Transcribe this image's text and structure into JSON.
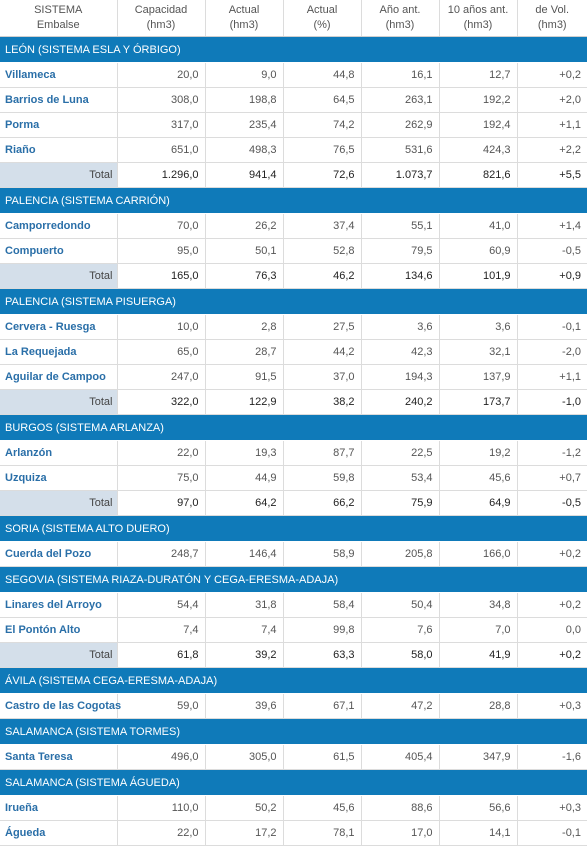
{
  "headers": [
    {
      "line1": "SISTEMA",
      "line2": "Embalse"
    },
    {
      "line1": "Capacidad",
      "line2": "(hm3)"
    },
    {
      "line1": "Actual",
      "line2": "(hm3)"
    },
    {
      "line1": "Actual",
      "line2": "(%)"
    },
    {
      "line1": "Año ant.",
      "line2": "(hm3)"
    },
    {
      "line1": "10 años ant.",
      "line2": "(hm3)"
    },
    {
      "line1": "de Vol.",
      "line2": "(hm3)"
    }
  ],
  "total_label": "Total",
  "sections": [
    {
      "title": "LEÓN (SISTEMA ESLA Y ÓRBIGO)",
      "rows": [
        {
          "name": "Villameca",
          "values": [
            "20,0",
            "9,0",
            "44,8",
            "16,1",
            "12,7",
            "+0,2"
          ]
        },
        {
          "name": "Barrios de Luna",
          "values": [
            "308,0",
            "198,8",
            "64,5",
            "263,1",
            "192,2",
            "+2,0"
          ]
        },
        {
          "name": "Porma",
          "values": [
            "317,0",
            "235,4",
            "74,2",
            "262,9",
            "192,4",
            "+1,1"
          ]
        },
        {
          "name": "Riaño",
          "values": [
            "651,0",
            "498,3",
            "76,5",
            "531,6",
            "424,3",
            "+2,2"
          ]
        }
      ],
      "total": [
        "1.296,0",
        "941,4",
        "72,6",
        "1.073,7",
        "821,6",
        "+5,5"
      ]
    },
    {
      "title": "PALENCIA (SISTEMA CARRIÓN)",
      "rows": [
        {
          "name": "Camporredondo",
          "values": [
            "70,0",
            "26,2",
            "37,4",
            "55,1",
            "41,0",
            "+1,4"
          ]
        },
        {
          "name": "Compuerto",
          "values": [
            "95,0",
            "50,1",
            "52,8",
            "79,5",
            "60,9",
            "-0,5"
          ]
        }
      ],
      "total": [
        "165,0",
        "76,3",
        "46,2",
        "134,6",
        "101,9",
        "+0,9"
      ]
    },
    {
      "title": "PALENCIA (SISTEMA PISUERGA)",
      "rows": [
        {
          "name": "Cervera - Ruesga",
          "values": [
            "10,0",
            "2,8",
            "27,5",
            "3,6",
            "3,6",
            "-0,1"
          ]
        },
        {
          "name": "La Requejada",
          "values": [
            "65,0",
            "28,7",
            "44,2",
            "42,3",
            "32,1",
            "-2,0"
          ]
        },
        {
          "name": "Aguilar de Campoo",
          "values": [
            "247,0",
            "91,5",
            "37,0",
            "194,3",
            "137,9",
            "+1,1"
          ]
        }
      ],
      "total": [
        "322,0",
        "122,9",
        "38,2",
        "240,2",
        "173,7",
        "-1,0"
      ]
    },
    {
      "title": "BURGOS (SISTEMA ARLANZA)",
      "rows": [
        {
          "name": "Arlanzón",
          "values": [
            "22,0",
            "19,3",
            "87,7",
            "22,5",
            "19,2",
            "-1,2"
          ]
        },
        {
          "name": "Uzquiza",
          "values": [
            "75,0",
            "44,9",
            "59,8",
            "53,4",
            "45,6",
            "+0,7"
          ]
        }
      ],
      "total": [
        "97,0",
        "64,2",
        "66,2",
        "75,9",
        "64,9",
        "-0,5"
      ]
    },
    {
      "title": "SORIA (SISTEMA ALTO DUERO)",
      "rows": [
        {
          "name": "Cuerda del Pozo",
          "values": [
            "248,7",
            "146,4",
            "58,9",
            "205,8",
            "166,0",
            "+0,2"
          ]
        }
      ],
      "total": null
    },
    {
      "title": "SEGOVIA (SISTEMA RIAZA-DURATÓN Y CEGA-ERESMA-ADAJA)",
      "rows": [
        {
          "name": "Linares del Arroyo",
          "values": [
            "54,4",
            "31,8",
            "58,4",
            "50,4",
            "34,8",
            "+0,2"
          ]
        },
        {
          "name": "El Pontón Alto",
          "values": [
            "7,4",
            "7,4",
            "99,8",
            "7,6",
            "7,0",
            "0,0"
          ]
        }
      ],
      "total": [
        "61,8",
        "39,2",
        "63,3",
        "58,0",
        "41,9",
        "+0,2"
      ]
    },
    {
      "title": "ÁVILA (SISTEMA CEGA-ERESMA-ADAJA)",
      "rows": [
        {
          "name": "Castro de las Cogotas",
          "values": [
            "59,0",
            "39,6",
            "67,1",
            "47,2",
            "28,8",
            "+0,3"
          ]
        }
      ],
      "total": null
    },
    {
      "title": "SALAMANCA (SISTEMA TORMES)",
      "rows": [
        {
          "name": "Santa Teresa",
          "values": [
            "496,0",
            "305,0",
            "61,5",
            "405,4",
            "347,9",
            "-1,6"
          ]
        }
      ],
      "total": null
    },
    {
      "title": "SALAMANCA (SISTEMA ÁGUEDA)",
      "rows": [
        {
          "name": "Irueña",
          "values": [
            "110,0",
            "50,2",
            "45,6",
            "88,6",
            "56,6",
            "+0,3"
          ]
        },
        {
          "name": "Águeda",
          "values": [
            "22,0",
            "17,2",
            "78,1",
            "17,0",
            "14,1",
            "-0,1"
          ]
        }
      ],
      "total": null
    }
  ]
}
